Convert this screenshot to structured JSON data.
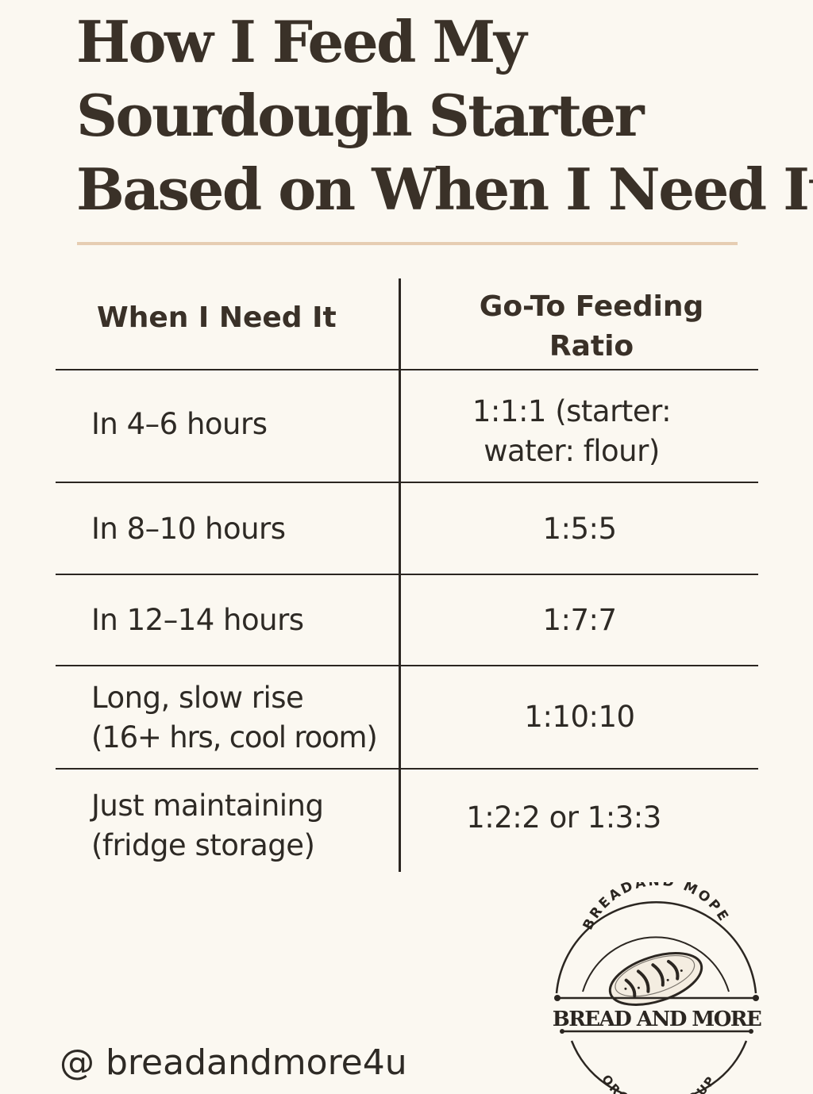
{
  "title": {
    "line1": "How I Feed My",
    "line2": "Sourdough Starter",
    "line3": "Based on When I Need It"
  },
  "table": {
    "headers": {
      "when": "When I Need It",
      "ratio_line1": "Go-To Feeding",
      "ratio_line2": "Ratio"
    },
    "rows": [
      {
        "when_line1": "In 4–6 hours",
        "when_line2": "",
        "ratio_line1": "1:1:1 (starter:",
        "ratio_line2": "water: flour)"
      },
      {
        "when_line1": "In 8–10 hours",
        "when_line2": "",
        "ratio_line1": "1:5:5",
        "ratio_line2": ""
      },
      {
        "when_line1": "In 12–14 hours",
        "when_line2": "",
        "ratio_line1": "1:7:7",
        "ratio_line2": ""
      },
      {
        "when_line1": "Long, slow rise",
        "when_line2": "(16+ hrs, cool room)",
        "ratio_line1": "1:10:10",
        "ratio_line2": ""
      },
      {
        "when_line1": "Just maintaining",
        "when_line2": "(fridge storage)",
        "ratio_line1": "1:2:2 or 1:3:3",
        "ratio_line2": ""
      }
    ]
  },
  "footer": {
    "handle": "@ breadandmore4u"
  },
  "logo": {
    "arc_top": "BREADAND MOPE",
    "banner": "BREAD AND MORE",
    "arc_bottom": "ORCANIC FLOUP",
    "icon": "bread-loaf-icon"
  },
  "colors": {
    "background": "#fbf8f1",
    "text": "#2e2a25",
    "accent_rule": "#e6cdb2"
  }
}
